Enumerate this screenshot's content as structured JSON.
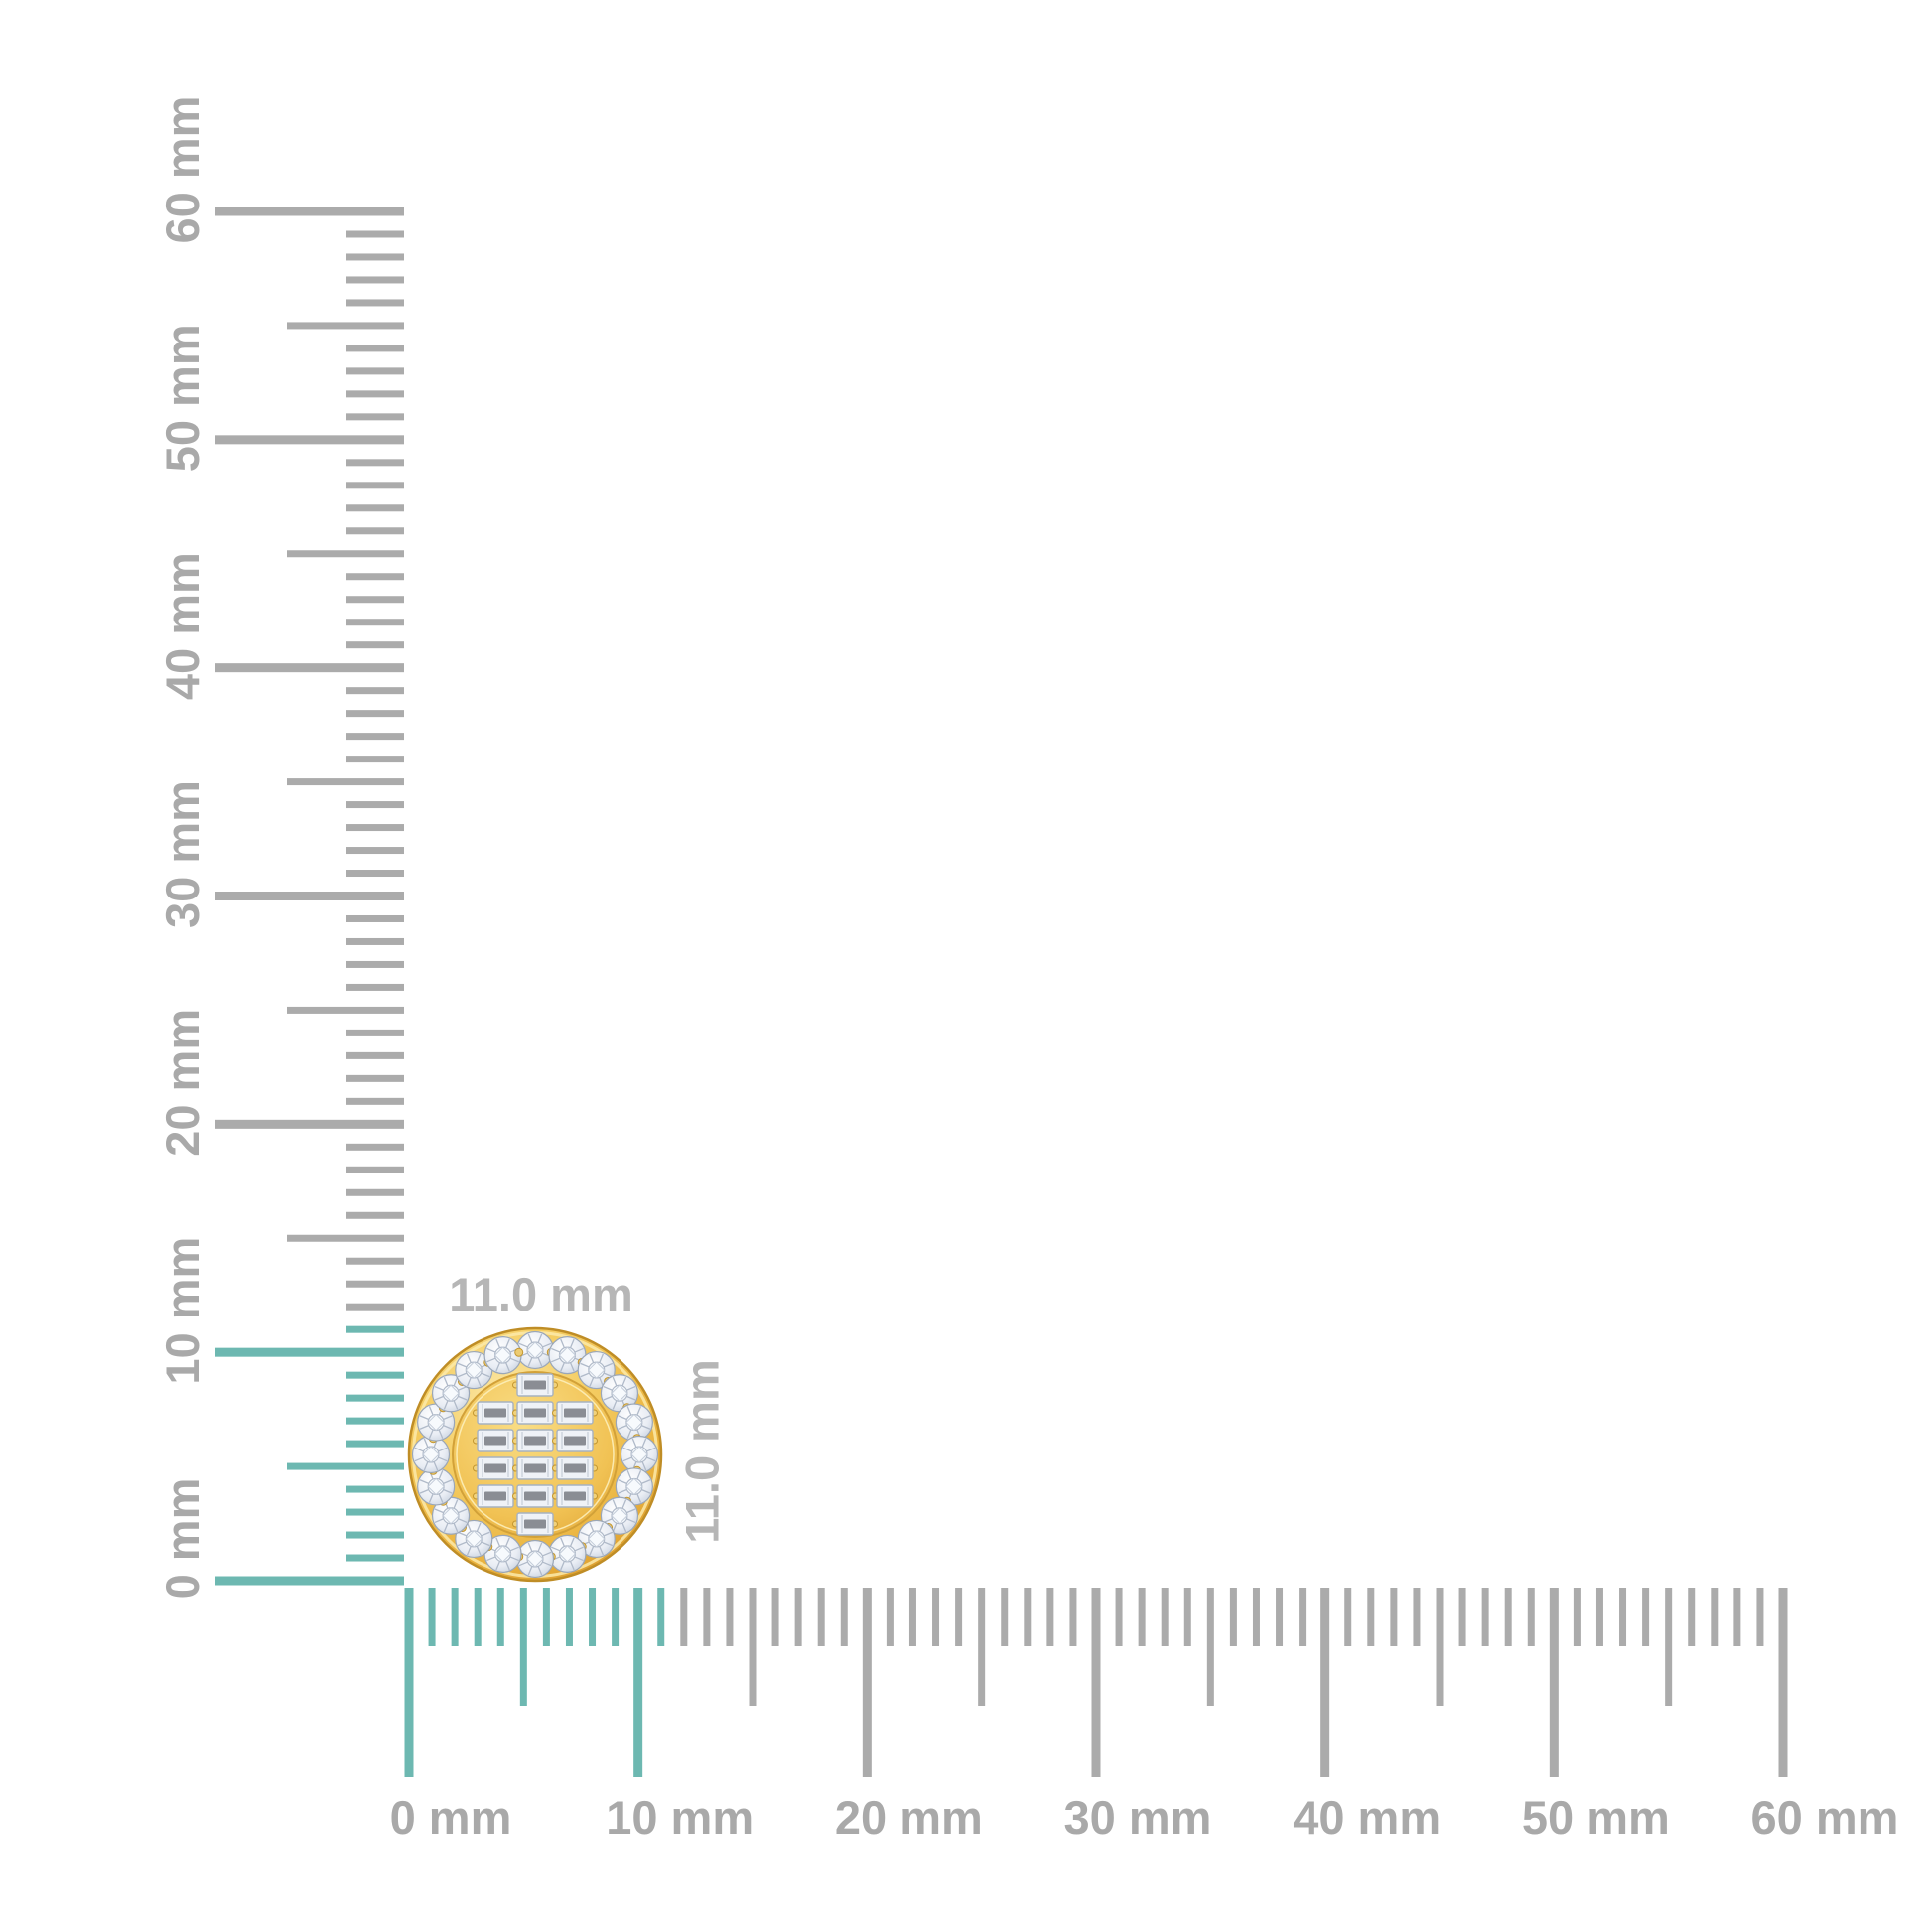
{
  "image": {
    "description": "Yellow gold round halo stud earring with a cluster of baguette diamonds, shown in the corner of two millimeter rulers indicating its size",
    "background_color": "#ffffff"
  },
  "measurement": {
    "width_label": "11.0 mm",
    "height_label": "11.0 mm",
    "width_mm": 11.0,
    "height_mm": 11.0
  },
  "rulers": {
    "unit": "mm",
    "min_mm": 0,
    "max_mm": 60,
    "minor_step_mm": 1,
    "medium_step_mm": 5,
    "major_step_mm": 10,
    "highlight_extent_mm": 11,
    "vertical": {
      "labels": [
        "0 mm",
        "10 mm",
        "20 mm",
        "30 mm",
        "40 mm",
        "50 mm",
        "60 mm"
      ]
    },
    "horizontal": {
      "labels": [
        "0 mm",
        "10 mm",
        "20 mm",
        "30 mm",
        "40 mm",
        "50 mm",
        "60 mm"
      ]
    }
  },
  "colors": {
    "tick_gray": "#ababab",
    "label_gray": "#a9a9a9",
    "measurement_label_gray": "#b6b6b6",
    "highlight_teal": "#6db8b1",
    "gold": "#f0c355",
    "gold_dark": "#d9992b",
    "gold_light": "#fceaae",
    "gold_edge_stroke": "#bf8d26",
    "inner_ring_stroke": "#d2a138",
    "diamond_white": "#eef1f6",
    "diamond_facet": "#b0bac9",
    "diamond_outline": "#9aa6b7",
    "baguette_core_gray": "#8a8d94",
    "prong_gold_fill": "#f1d27c",
    "prong_gold_stroke": "#c3962f"
  },
  "earring": {
    "halo_stone_count": 20,
    "baguette_rows": [
      1,
      3,
      3,
      3,
      3,
      1
    ]
  }
}
